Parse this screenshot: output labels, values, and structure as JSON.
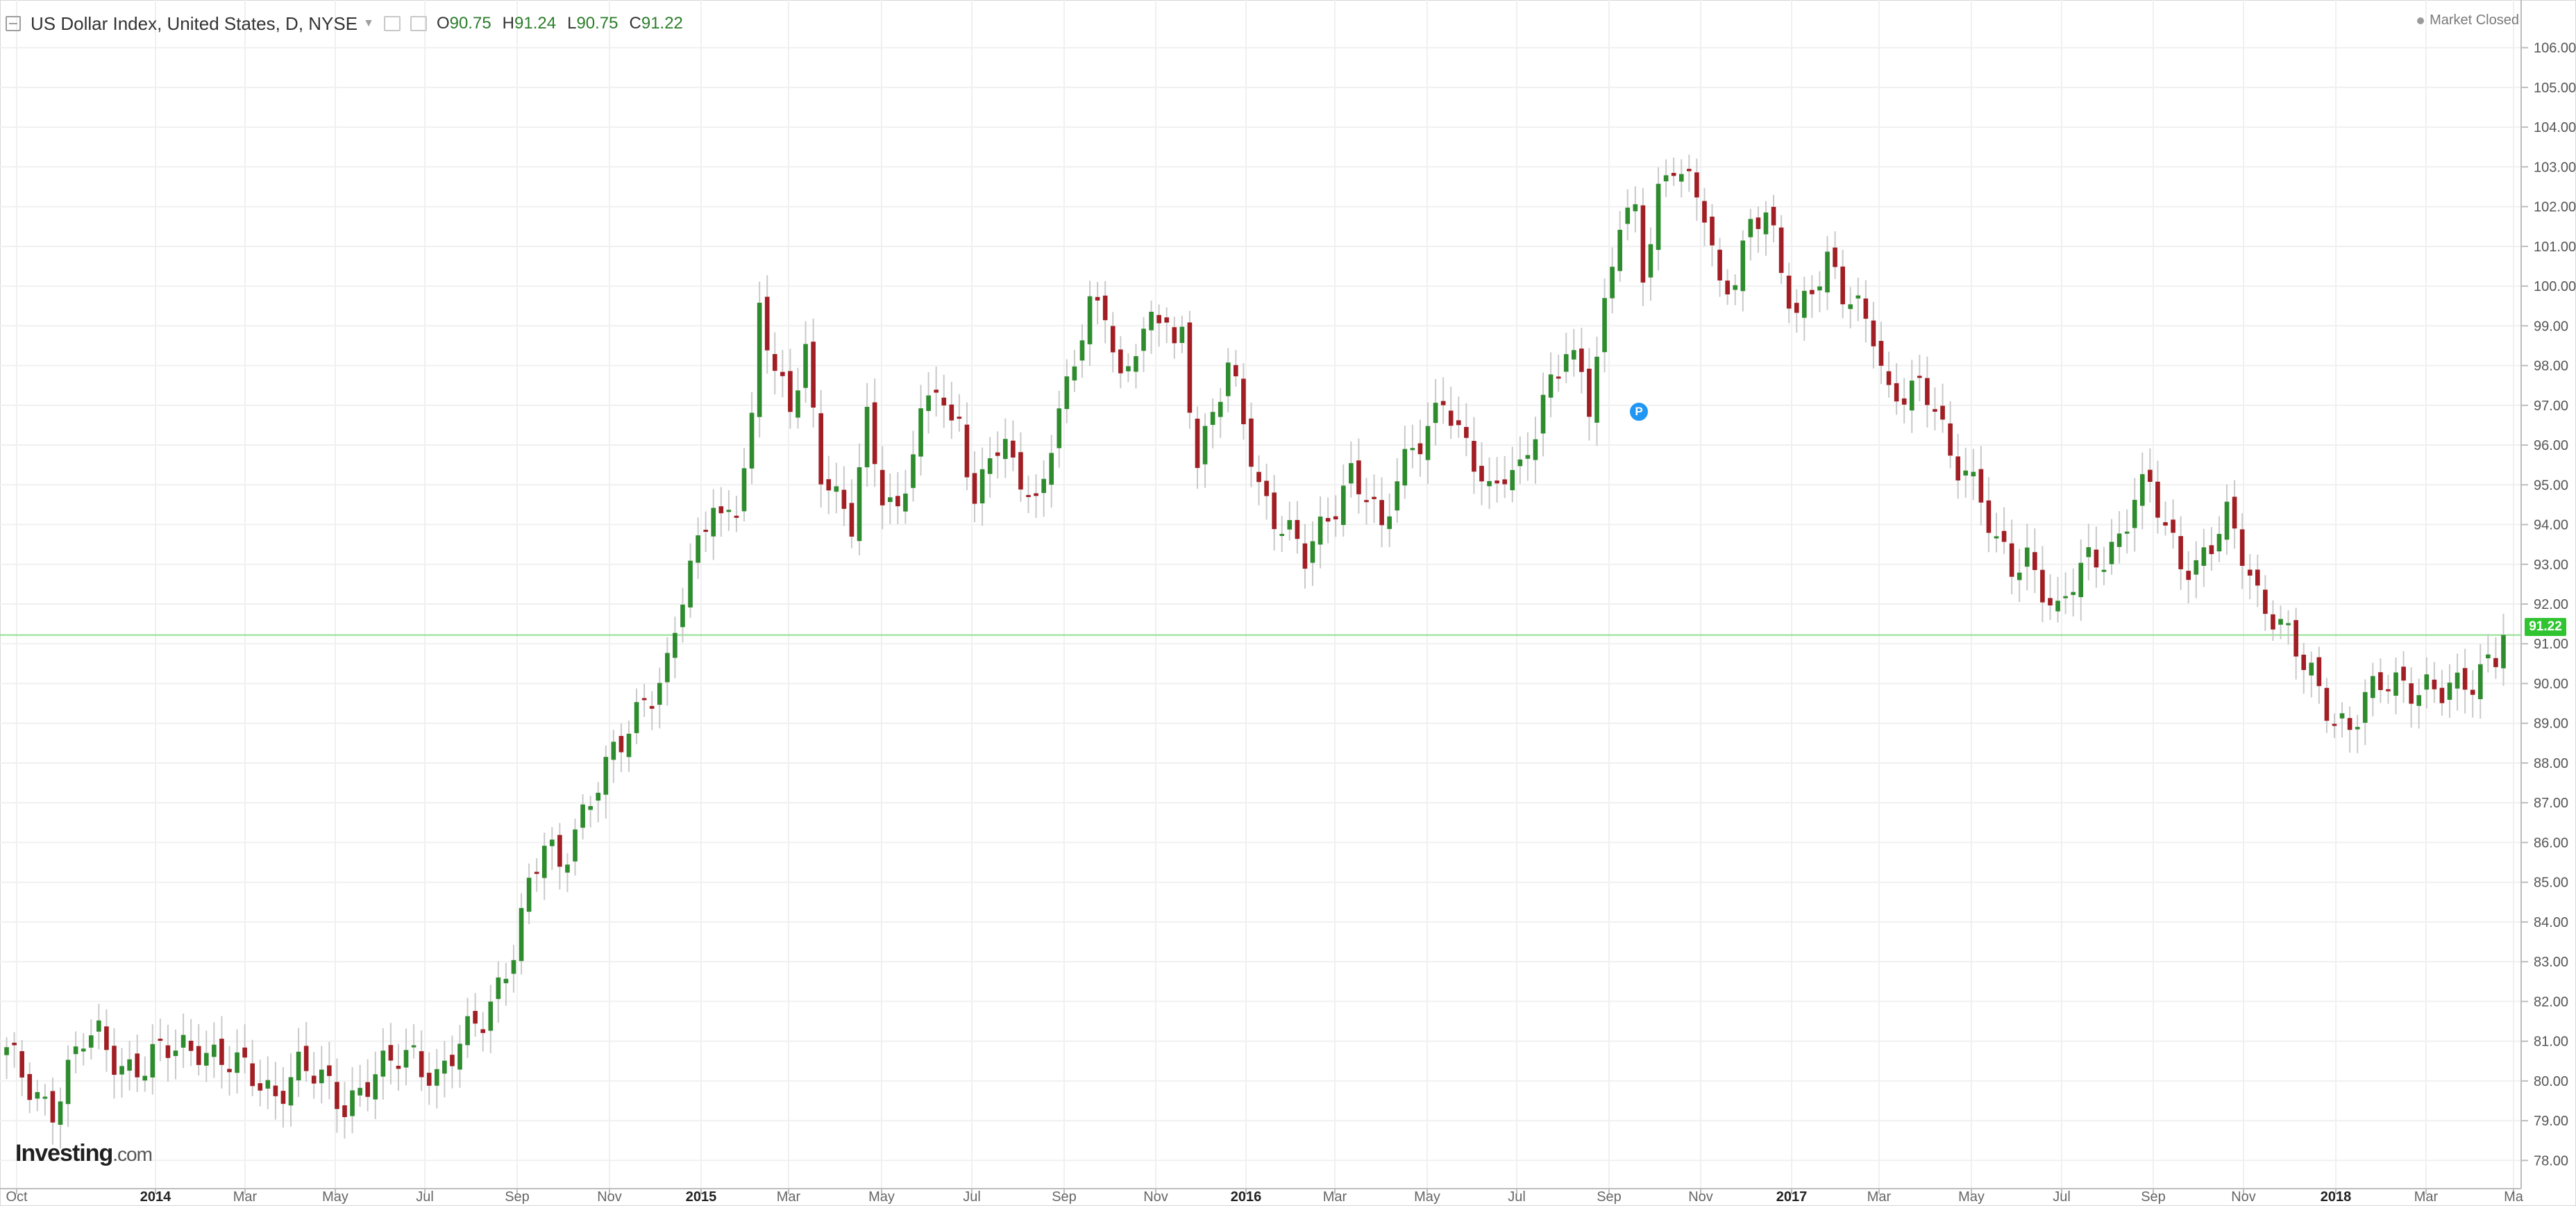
{
  "header": {
    "symbol_title": "US Dollar Index, United States, D, NYSE",
    "open_label": "O",
    "open_value": "90.75",
    "high_label": "H",
    "high_value": "91.24",
    "low_label": "L",
    "low_value": "90.75",
    "close_label": "C",
    "close_value": "91.22"
  },
  "status": {
    "market": "Market Closed"
  },
  "branding": {
    "logo_main": "Investing",
    "logo_suffix": ".com"
  },
  "price_badge": "91.22",
  "marker_label": "P",
  "colors": {
    "up": "#2e8b2e",
    "down": "#a11f24",
    "wick": "#c9c9c9",
    "grid": "#f0f0f0",
    "price_line": "#8de08d",
    "badge": "#31c431",
    "marker": "#2196f3"
  },
  "chart_data": {
    "type": "candlestick",
    "title": "US Dollar Index, United States, D, NYSE",
    "y_axis": {
      "min": 77.5,
      "max": 106.5,
      "ticks": [
        "78.00",
        "79.00",
        "80.00",
        "81.00",
        "82.00",
        "83.00",
        "84.00",
        "85.00",
        "86.00",
        "87.00",
        "88.00",
        "89.00",
        "90.00",
        "91.00",
        "92.00",
        "93.00",
        "94.00",
        "95.00",
        "96.00",
        "97.00",
        "98.00",
        "99.00",
        "100.00",
        "101.00",
        "102.00",
        "103.00",
        "104.00",
        "105.00",
        "106.00"
      ]
    },
    "x_axis": {
      "labels": [
        {
          "text": "Oct",
          "major": false
        },
        {
          "text": "2014",
          "major": true
        },
        {
          "text": "Mar",
          "major": false
        },
        {
          "text": "May",
          "major": false
        },
        {
          "text": "Jul",
          "major": false
        },
        {
          "text": "Sep",
          "major": false
        },
        {
          "text": "Nov",
          "major": false
        },
        {
          "text": "2015",
          "major": true
        },
        {
          "text": "Mar",
          "major": false
        },
        {
          "text": "May",
          "major": false
        },
        {
          "text": "Jul",
          "major": false
        },
        {
          "text": "Sep",
          "major": false
        },
        {
          "text": "Nov",
          "major": false
        },
        {
          "text": "2016",
          "major": true
        },
        {
          "text": "Mar",
          "major": false
        },
        {
          "text": "May",
          "major": false
        },
        {
          "text": "Jul",
          "major": false
        },
        {
          "text": "Sep",
          "major": false
        },
        {
          "text": "Nov",
          "major": false
        },
        {
          "text": "2017",
          "major": true
        },
        {
          "text": "Mar",
          "major": false
        },
        {
          "text": "May",
          "major": false
        },
        {
          "text": "Jul",
          "major": false
        },
        {
          "text": "Sep",
          "major": false
        },
        {
          "text": "Nov",
          "major": false
        },
        {
          "text": "2018",
          "major": true
        },
        {
          "text": "Mar",
          "major": false
        },
        {
          "text": "Ma",
          "major": false
        }
      ]
    },
    "last_price": 91.22,
    "series_close": [
      [
        0,
        80.6
      ],
      [
        2,
        80.1
      ],
      [
        6,
        79.4
      ],
      [
        10,
        80.9
      ],
      [
        12,
        81.1
      ],
      [
        15,
        80.5
      ],
      [
        18,
        80.3
      ],
      [
        20,
        80.6
      ],
      [
        23,
        80.9
      ],
      [
        25,
        81.0
      ],
      [
        29,
        80.3
      ],
      [
        32,
        80.1
      ],
      [
        35,
        79.8
      ],
      [
        38,
        80.3
      ],
      [
        40,
        80.0
      ],
      [
        42,
        79.8
      ],
      [
        44,
        79.5
      ],
      [
        46,
        79.9
      ],
      [
        49,
        80.2
      ],
      [
        53,
        80.7
      ],
      [
        56,
        80.2
      ],
      [
        59,
        80.8
      ],
      [
        62,
        81.5
      ],
      [
        64,
        82.5
      ],
      [
        66,
        83.5
      ],
      [
        68,
        84.8
      ],
      [
        70,
        85.8
      ],
      [
        72,
        85.3
      ],
      [
        74,
        86.5
      ],
      [
        77,
        87.6
      ],
      [
        80,
        88.3
      ],
      [
        83,
        89.6
      ],
      [
        86,
        90.6
      ],
      [
        88,
        92.2
      ],
      [
        90,
        93.2
      ],
      [
        92,
        94.6
      ],
      [
        93,
        94.1
      ],
      [
        95,
        94.8
      ],
      [
        97,
        96.5
      ],
      [
        98,
        99.5
      ],
      [
        100,
        97.5
      ],
      [
        102,
        97.0
      ],
      [
        104,
        98.5
      ],
      [
        106,
        95.5
      ],
      [
        108,
        94.5
      ],
      [
        110,
        93.8
      ],
      [
        112,
        96.6
      ],
      [
        114,
        95.0
      ],
      [
        116,
        94.4
      ],
      [
        118,
        95.8
      ],
      [
        121,
        97.5
      ],
      [
        123,
        96.4
      ],
      [
        124,
        97.0
      ],
      [
        126,
        94.5
      ],
      [
        128,
        95.8
      ],
      [
        130,
        95.6
      ],
      [
        132,
        95.2
      ],
      [
        134,
        94.6
      ],
      [
        136,
        96.3
      ],
      [
        138,
        97.3
      ],
      [
        141,
        99.3
      ],
      [
        143,
        99.6
      ],
      [
        145,
        97.7
      ],
      [
        147,
        98.6
      ],
      [
        149,
        98.8
      ],
      [
        151,
        99.2
      ],
      [
        152,
        98.3
      ],
      [
        153,
        98.9
      ],
      [
        155,
        95.8
      ],
      [
        157,
        96.8
      ],
      [
        159,
        97.8
      ],
      [
        161,
        96.5
      ],
      [
        163,
        95.0
      ],
      [
        165,
        94.4
      ],
      [
        167,
        93.8
      ],
      [
        169,
        93.0
      ],
      [
        171,
        93.7
      ],
      [
        173,
        94.6
      ],
      [
        175,
        95.5
      ],
      [
        177,
        94.8
      ],
      [
        179,
        93.6
      ],
      [
        181,
        95.0
      ],
      [
        183,
        96.1
      ],
      [
        185,
        96.6
      ],
      [
        187,
        97.2
      ],
      [
        189,
        96.0
      ],
      [
        191,
        95.5
      ],
      [
        193,
        94.9
      ],
      [
        195,
        95.6
      ],
      [
        197,
        95.3
      ],
      [
        199,
        96.2
      ],
      [
        201,
        97.4
      ],
      [
        203,
        98.6
      ],
      [
        205,
        98.0
      ],
      [
        206,
        97.2
      ],
      [
        208,
        99.2
      ],
      [
        210,
        101.5
      ],
      [
        212,
        101.8
      ],
      [
        213,
        100.5
      ],
      [
        215,
        102.5
      ],
      [
        217,
        103.1
      ],
      [
        219,
        102.3
      ],
      [
        221,
        101.8
      ],
      [
        223,
        100.0
      ],
      [
        225,
        100.5
      ],
      [
        227,
        101.5
      ],
      [
        229,
        101.7
      ],
      [
        231,
        100.2
      ],
      [
        233,
        99.4
      ],
      [
        235,
        100.2
      ],
      [
        237,
        100.6
      ],
      [
        239,
        99.6
      ],
      [
        241,
        99.3
      ],
      [
        243,
        99.0
      ],
      [
        245,
        97.4
      ],
      [
        247,
        97.3
      ],
      [
        249,
        97.2
      ],
      [
        251,
        96.9
      ],
      [
        253,
        95.8
      ],
      [
        255,
        95.6
      ],
      [
        257,
        94.6
      ],
      [
        259,
        93.3
      ],
      [
        261,
        92.8
      ],
      [
        263,
        93.3
      ],
      [
        265,
        92.6
      ],
      [
        267,
        91.7
      ],
      [
        269,
        92.4
      ],
      [
        271,
        93.0
      ],
      [
        273,
        93.3
      ],
      [
        275,
        93.8
      ],
      [
        277,
        94.7
      ],
      [
        279,
        94.8
      ],
      [
        281,
        93.8
      ],
      [
        283,
        93.2
      ],
      [
        285,
        93.1
      ],
      [
        287,
        93.5
      ],
      [
        289,
        94.0
      ],
      [
        291,
        93.2
      ],
      [
        293,
        92.3
      ],
      [
        295,
        91.9
      ],
      [
        297,
        91.2
      ],
      [
        299,
        90.3
      ],
      [
        301,
        89.7
      ],
      [
        303,
        89.2
      ],
      [
        305,
        89.1
      ],
      [
        307,
        89.6
      ],
      [
        309,
        89.8
      ],
      [
        311,
        89.9
      ],
      [
        313,
        90.0
      ],
      [
        315,
        90.1
      ],
      [
        317,
        89.8
      ],
      [
        319,
        89.7
      ],
      [
        321,
        89.9
      ],
      [
        323,
        90.7
      ],
      [
        325,
        91.22
      ]
    ]
  }
}
